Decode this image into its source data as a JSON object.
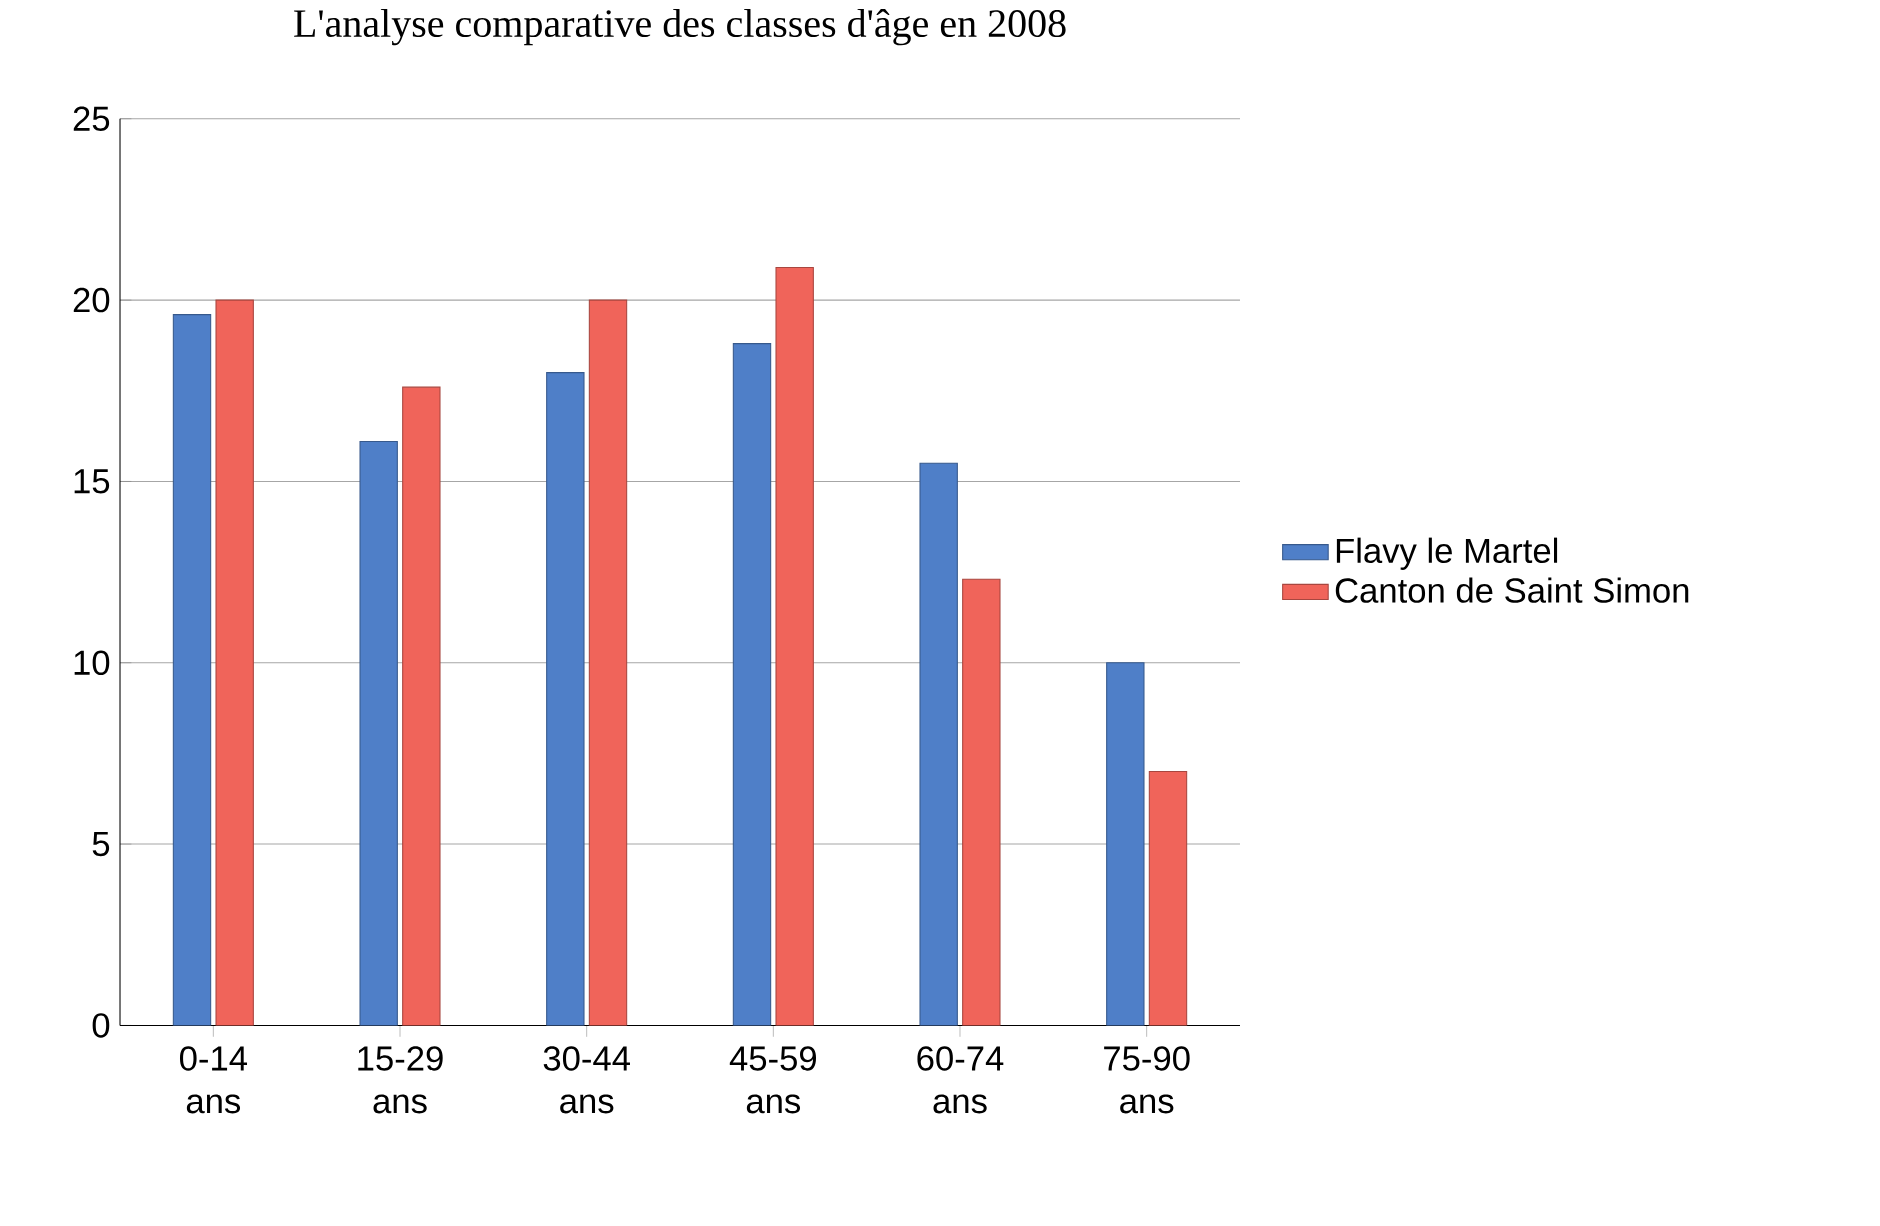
{
  "chart_data": {
    "type": "bar",
    "title": "L'analyse comparative des classes d'âge en 2008",
    "categories": [
      "0-14 ans",
      "15-29 ans",
      "30-44 ans",
      "45-59 ans",
      "60-74 ans",
      "75-90 ans"
    ],
    "series": [
      {
        "name": "Flavy le Martel",
        "color": "#4f7fc8",
        "values": [
          19.6,
          16.1,
          18.0,
          18.8,
          15.5,
          10.0
        ]
      },
      {
        "name": "Canton de Saint Simon",
        "color": "#f0645a",
        "values": [
          20.0,
          17.6,
          20.0,
          20.9,
          12.3,
          7.0
        ]
      }
    ],
    "ylim": [
      0,
      25
    ],
    "yticks": [
      0,
      5,
      10,
      15,
      20,
      25
    ],
    "grid": "y",
    "legend": "right"
  }
}
